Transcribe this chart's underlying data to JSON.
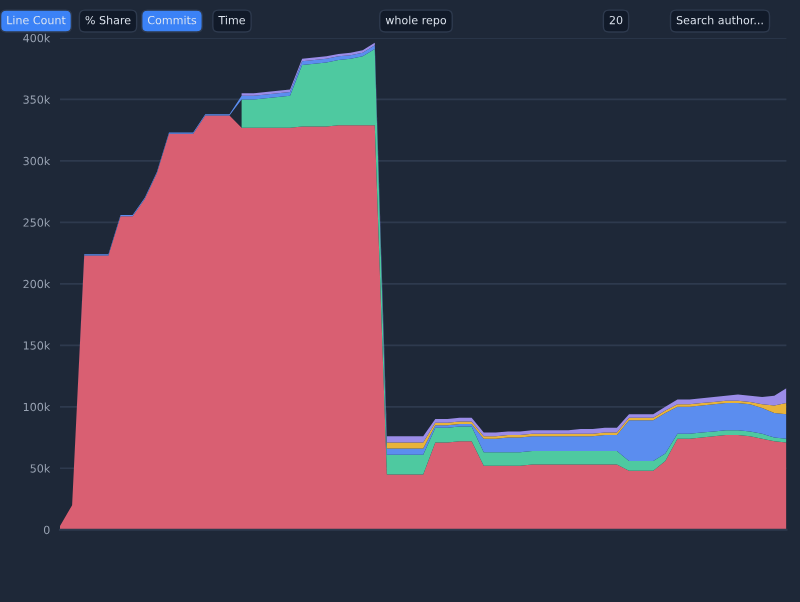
{
  "chart_data": {
    "type": "area",
    "stacked": true,
    "categories": [
      null,
      null,
      null,
      null,
      null,
      null,
      null,
      null,
      null,
      null,
      null,
      null,
      null,
      null,
      null,
      null,
      null,
      null,
      null,
      null,
      null,
      null,
      null,
      null,
      null,
      null,
      null,
      null,
      null,
      null,
      null,
      null,
      null,
      null,
      null,
      null,
      null,
      null,
      null,
      null,
      null,
      null,
      null,
      null,
      null,
      null,
      null,
      null,
      null,
      null,
      null,
      null,
      null,
      null,
      null,
      null,
      null,
      null,
      null,
      null,
      null
    ],
    "series": [
      {
        "color": "#d95f72",
        "values": [
          3000,
          20000,
          223000,
          223000,
          223000,
          255000,
          255000,
          269000,
          290000,
          322000,
          322000,
          322000,
          337000,
          337000,
          337000,
          327000,
          327000,
          327000,
          327000,
          327000,
          328000,
          328000,
          328000,
          329000,
          329000,
          329000,
          329000,
          45000,
          45000,
          45000,
          45000,
          71000,
          71000,
          72000,
          72000,
          52000,
          52000,
          52000,
          52000,
          53000,
          53000,
          53000,
          53000,
          53000,
          53000,
          53000,
          53000,
          48000,
          48000,
          48000,
          56000,
          74000,
          74000,
          75000,
          76000,
          77000,
          77000,
          76000,
          74000,
          72000,
          71000
        ]
      },
      {
        "color": "#4ec9a0",
        "values": [
          null,
          null,
          null,
          null,
          null,
          null,
          null,
          null,
          null,
          null,
          null,
          null,
          null,
          null,
          null,
          23000,
          23000,
          24000,
          25000,
          26000,
          50000,
          51000,
          52000,
          53000,
          54000,
          56000,
          62000,
          16000,
          16000,
          16000,
          16000,
          12000,
          12000,
          12000,
          12000,
          11000,
          11000,
          11000,
          11000,
          11000,
          11000,
          11000,
          11000,
          11000,
          11000,
          11000,
          11000,
          8000,
          8000,
          8000,
          6000,
          4000,
          4000,
          4000,
          4000,
          4000,
          4000,
          4000,
          4000,
          3000,
          3000
        ]
      },
      {
        "color": "#5b8def",
        "values": [
          0,
          0,
          1000,
          1000,
          1000,
          1000,
          1000,
          1000,
          1000,
          1000,
          1000,
          1000,
          1000,
          1000,
          1000,
          3000,
          3000,
          3000,
          3000,
          3000,
          3000,
          3000,
          3000,
          3000,
          3000,
          3000,
          3000,
          5000,
          5000,
          5000,
          5000,
          2000,
          2000,
          2000,
          2000,
          11000,
          11000,
          12000,
          12000,
          12000,
          12000,
          12000,
          12000,
          12000,
          12000,
          13000,
          13000,
          33000,
          33000,
          33000,
          33000,
          22000,
          22000,
          22000,
          22000,
          22000,
          22000,
          22000,
          21000,
          20000,
          20000
        ]
      },
      {
        "color": "#e8b33a",
        "values": [
          null,
          null,
          null,
          null,
          null,
          null,
          null,
          null,
          null,
          null,
          null,
          null,
          null,
          null,
          null,
          null,
          null,
          null,
          null,
          null,
          null,
          null,
          null,
          null,
          null,
          null,
          null,
          5000,
          5000,
          5000,
          5000,
          2000,
          2000,
          2000,
          2000,
          2000,
          2000,
          2000,
          2000,
          2000,
          2000,
          2000,
          2000,
          2000,
          2000,
          2000,
          2000,
          2000,
          2000,
          2000,
          2000,
          2000,
          2000,
          2000,
          2000,
          2000,
          2000,
          2000,
          3000,
          6000,
          9000
        ]
      },
      {
        "color": "#9b8ce8",
        "values": [
          null,
          null,
          null,
          null,
          null,
          null,
          null,
          null,
          null,
          null,
          null,
          null,
          null,
          null,
          null,
          2000,
          2000,
          2000,
          2000,
          2000,
          2000,
          2000,
          2000,
          2000,
          2000,
          2000,
          2000,
          5000,
          5000,
          5000,
          5000,
          3000,
          3000,
          3000,
          3000,
          3000,
          3000,
          3000,
          3000,
          3000,
          3000,
          3000,
          3000,
          4000,
          4000,
          4000,
          4000,
          3000,
          3000,
          3000,
          3000,
          4000,
          4000,
          4000,
          4000,
          4000,
          5000,
          5000,
          6000,
          8000,
          12000
        ]
      }
    ],
    "ylim": [
      0,
      400000
    ],
    "yticks": [
      0,
      {
        "value": 50000,
        "label": "50k"
      },
      {
        "value": 100000,
        "label": "100k"
      },
      {
        "value": 150000,
        "label": "150k"
      },
      {
        "value": 200000,
        "label": "200k"
      },
      {
        "value": 250000,
        "label": "250k"
      },
      {
        "value": 300000,
        "label": "300k"
      },
      {
        "value": 350000,
        "label": "350k"
      },
      {
        "value": 400000,
        "label": "400k"
      }
    ],
    "grid": "y",
    "annotations": [
      "Line Count",
      "% Share",
      "Commits",
      "Time",
      "whole repo",
      "20",
      "Search author..."
    ]
  }
}
